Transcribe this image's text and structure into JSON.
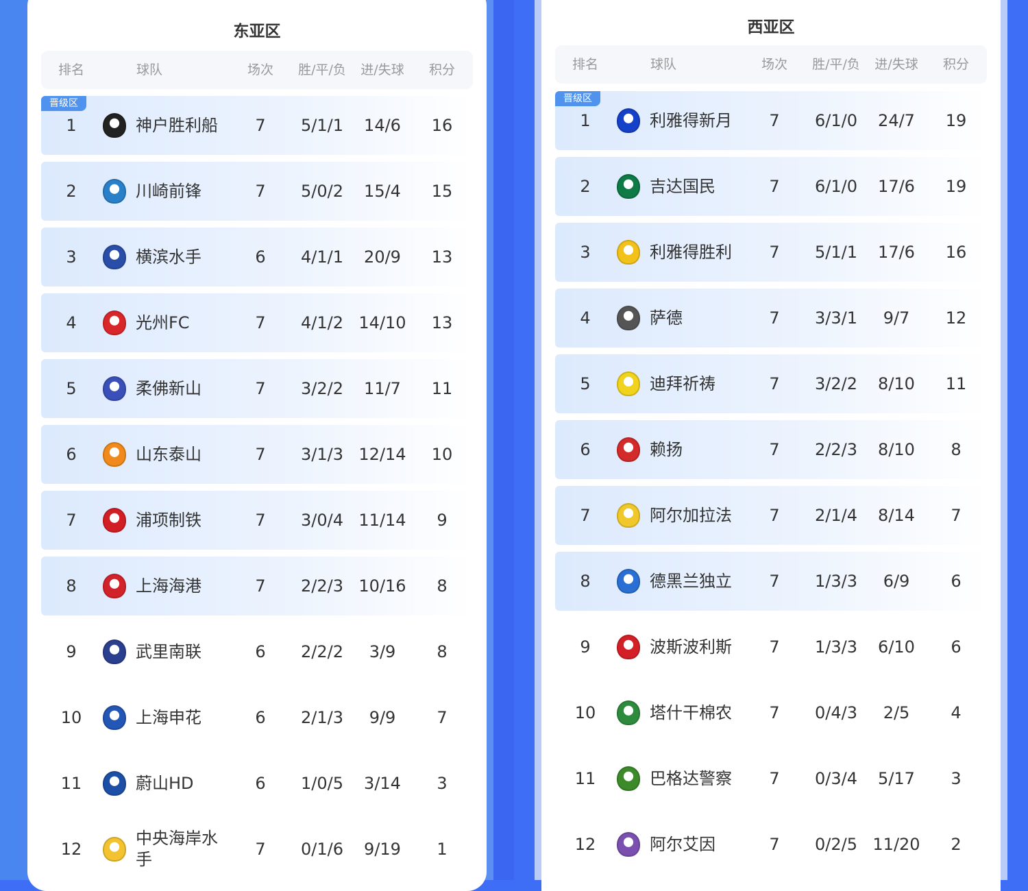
{
  "headers": {
    "rank": "排名",
    "team": "球队",
    "played": "场次",
    "wdl": "胜/平/负",
    "goals": "进/失球",
    "points": "积分"
  },
  "badge_label": "晋级区",
  "colors": {
    "accent": "#4f93ee",
    "background": "#3d6ef5",
    "highlight": "#dceafd"
  },
  "east": {
    "title": "东亚区",
    "rows": [
      {
        "rank": "1",
        "team": "神户胜利船",
        "played": "7",
        "wdl": "5/1/1",
        "goals": "14/6",
        "points": "16",
        "logo_color": "#222222",
        "qualified": true
      },
      {
        "rank": "2",
        "team": "川崎前锋",
        "played": "7",
        "wdl": "5/0/2",
        "goals": "15/4",
        "points": "15",
        "logo_color": "#2a7fc9",
        "qualified": true
      },
      {
        "rank": "3",
        "team": "横滨水手",
        "played": "6",
        "wdl": "4/1/1",
        "goals": "20/9",
        "points": "13",
        "logo_color": "#2a4ea8",
        "qualified": true
      },
      {
        "rank": "4",
        "team": "光州FC",
        "played": "7",
        "wdl": "4/1/2",
        "goals": "14/10",
        "points": "13",
        "logo_color": "#d9262b",
        "qualified": true
      },
      {
        "rank": "5",
        "team": "柔佛新山",
        "played": "7",
        "wdl": "3/2/2",
        "goals": "11/7",
        "points": "11",
        "logo_color": "#3a4fb8",
        "qualified": true
      },
      {
        "rank": "6",
        "team": "山东泰山",
        "played": "7",
        "wdl": "3/1/3",
        "goals": "12/14",
        "points": "10",
        "logo_color": "#f08a1c",
        "qualified": true
      },
      {
        "rank": "7",
        "team": "浦项制铁",
        "played": "7",
        "wdl": "3/0/4",
        "goals": "11/14",
        "points": "9",
        "logo_color": "#d21f26",
        "qualified": true
      },
      {
        "rank": "8",
        "team": "上海海港",
        "played": "7",
        "wdl": "2/2/3",
        "goals": "10/16",
        "points": "8",
        "logo_color": "#d3232a",
        "qualified": true
      },
      {
        "rank": "9",
        "team": "武里南联",
        "played": "6",
        "wdl": "2/2/2",
        "goals": "3/9",
        "points": "8",
        "logo_color": "#2b3f8f",
        "qualified": false
      },
      {
        "rank": "10",
        "team": "上海申花",
        "played": "6",
        "wdl": "2/1/3",
        "goals": "9/9",
        "points": "7",
        "logo_color": "#2356b5",
        "qualified": false
      },
      {
        "rank": "11",
        "team": "蔚山HD",
        "played": "6",
        "wdl": "1/0/5",
        "goals": "3/14",
        "points": "3",
        "logo_color": "#1e4fa6",
        "qualified": false
      },
      {
        "rank": "12",
        "team": "中央海岸水手",
        "played": "7",
        "wdl": "0/1/6",
        "goals": "9/19",
        "points": "1",
        "logo_color": "#f2c230",
        "qualified": false
      }
    ]
  },
  "west": {
    "title": "西亚区",
    "rows": [
      {
        "rank": "1",
        "team": "利雅得新月",
        "played": "7",
        "wdl": "6/1/0",
        "goals": "24/7",
        "points": "19",
        "logo_color": "#1541c9",
        "qualified": true
      },
      {
        "rank": "2",
        "team": "吉达国民",
        "played": "7",
        "wdl": "6/1/0",
        "goals": "17/6",
        "points": "19",
        "logo_color": "#0e7a45",
        "qualified": true
      },
      {
        "rank": "3",
        "team": "利雅得胜利",
        "played": "7",
        "wdl": "5/1/1",
        "goals": "17/6",
        "points": "16",
        "logo_color": "#f2c21b",
        "qualified": true
      },
      {
        "rank": "4",
        "team": "萨德",
        "played": "7",
        "wdl": "3/3/1",
        "goals": "9/7",
        "points": "12",
        "logo_color": "#555555",
        "qualified": true
      },
      {
        "rank": "5",
        "team": "迪拜祈祷",
        "played": "7",
        "wdl": "3/2/2",
        "goals": "8/10",
        "points": "11",
        "logo_color": "#f1d21c",
        "qualified": true
      },
      {
        "rank": "6",
        "team": "赖扬",
        "played": "7",
        "wdl": "2/2/3",
        "goals": "8/10",
        "points": "8",
        "logo_color": "#d32a2a",
        "qualified": true
      },
      {
        "rank": "7",
        "team": "阿尔加拉法",
        "played": "7",
        "wdl": "2/1/4",
        "goals": "8/14",
        "points": "7",
        "logo_color": "#f0c82a",
        "qualified": true
      },
      {
        "rank": "8",
        "team": "德黑兰独立",
        "played": "7",
        "wdl": "1/3/3",
        "goals": "6/9",
        "points": "6",
        "logo_color": "#2a6fd3",
        "qualified": true
      },
      {
        "rank": "9",
        "team": "波斯波利斯",
        "played": "7",
        "wdl": "1/3/3",
        "goals": "6/10",
        "points": "6",
        "logo_color": "#d32027",
        "qualified": false
      },
      {
        "rank": "10",
        "team": "塔什干棉农",
        "played": "7",
        "wdl": "0/4/3",
        "goals": "2/5",
        "points": "4",
        "logo_color": "#2e8b3e",
        "qualified": false
      },
      {
        "rank": "11",
        "team": "巴格达警察",
        "played": "7",
        "wdl": "0/3/4",
        "goals": "5/17",
        "points": "3",
        "logo_color": "#3d8a2a",
        "qualified": false
      },
      {
        "rank": "12",
        "team": "阿尔艾因",
        "played": "7",
        "wdl": "0/2/5",
        "goals": "11/20",
        "points": "2",
        "logo_color": "#7a4fb0",
        "qualified": false
      }
    ]
  }
}
